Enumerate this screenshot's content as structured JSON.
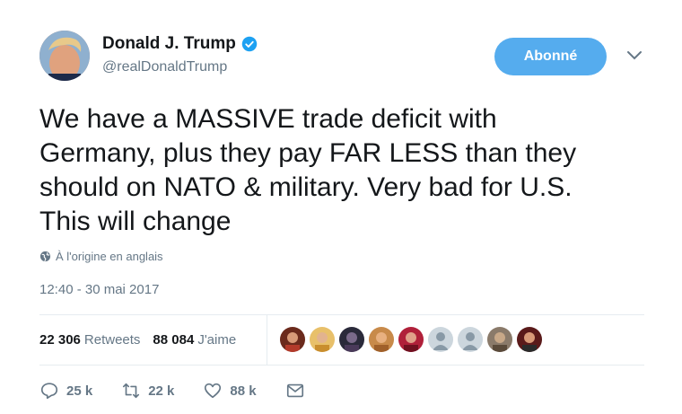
{
  "user": {
    "display_name": "Donald J. Trump",
    "handle": "@realDonaldTrump",
    "verified": true
  },
  "follow_button": {
    "label": "Abonné"
  },
  "tweet": {
    "text": "We have a MASSIVE trade deficit with\nGermany, plus they pay FAR LESS than they\nshould on NATO & military. Very bad for U.S.\nThis will change",
    "translate_label": "À l'origine en anglais",
    "timestamp": "12:40 - 30 mai 2017"
  },
  "stats": {
    "retweets_count": "22 306",
    "retweets_label": "Retweets",
    "likes_count": "88 084",
    "likes_label": "J'aime"
  },
  "actions": {
    "reply_count": "25 k",
    "retweet_count": "22 k",
    "like_count": "88 k"
  },
  "colors": {
    "accent": "#55acee",
    "secondary_text": "#657786",
    "divider": "#e6ecf0"
  }
}
